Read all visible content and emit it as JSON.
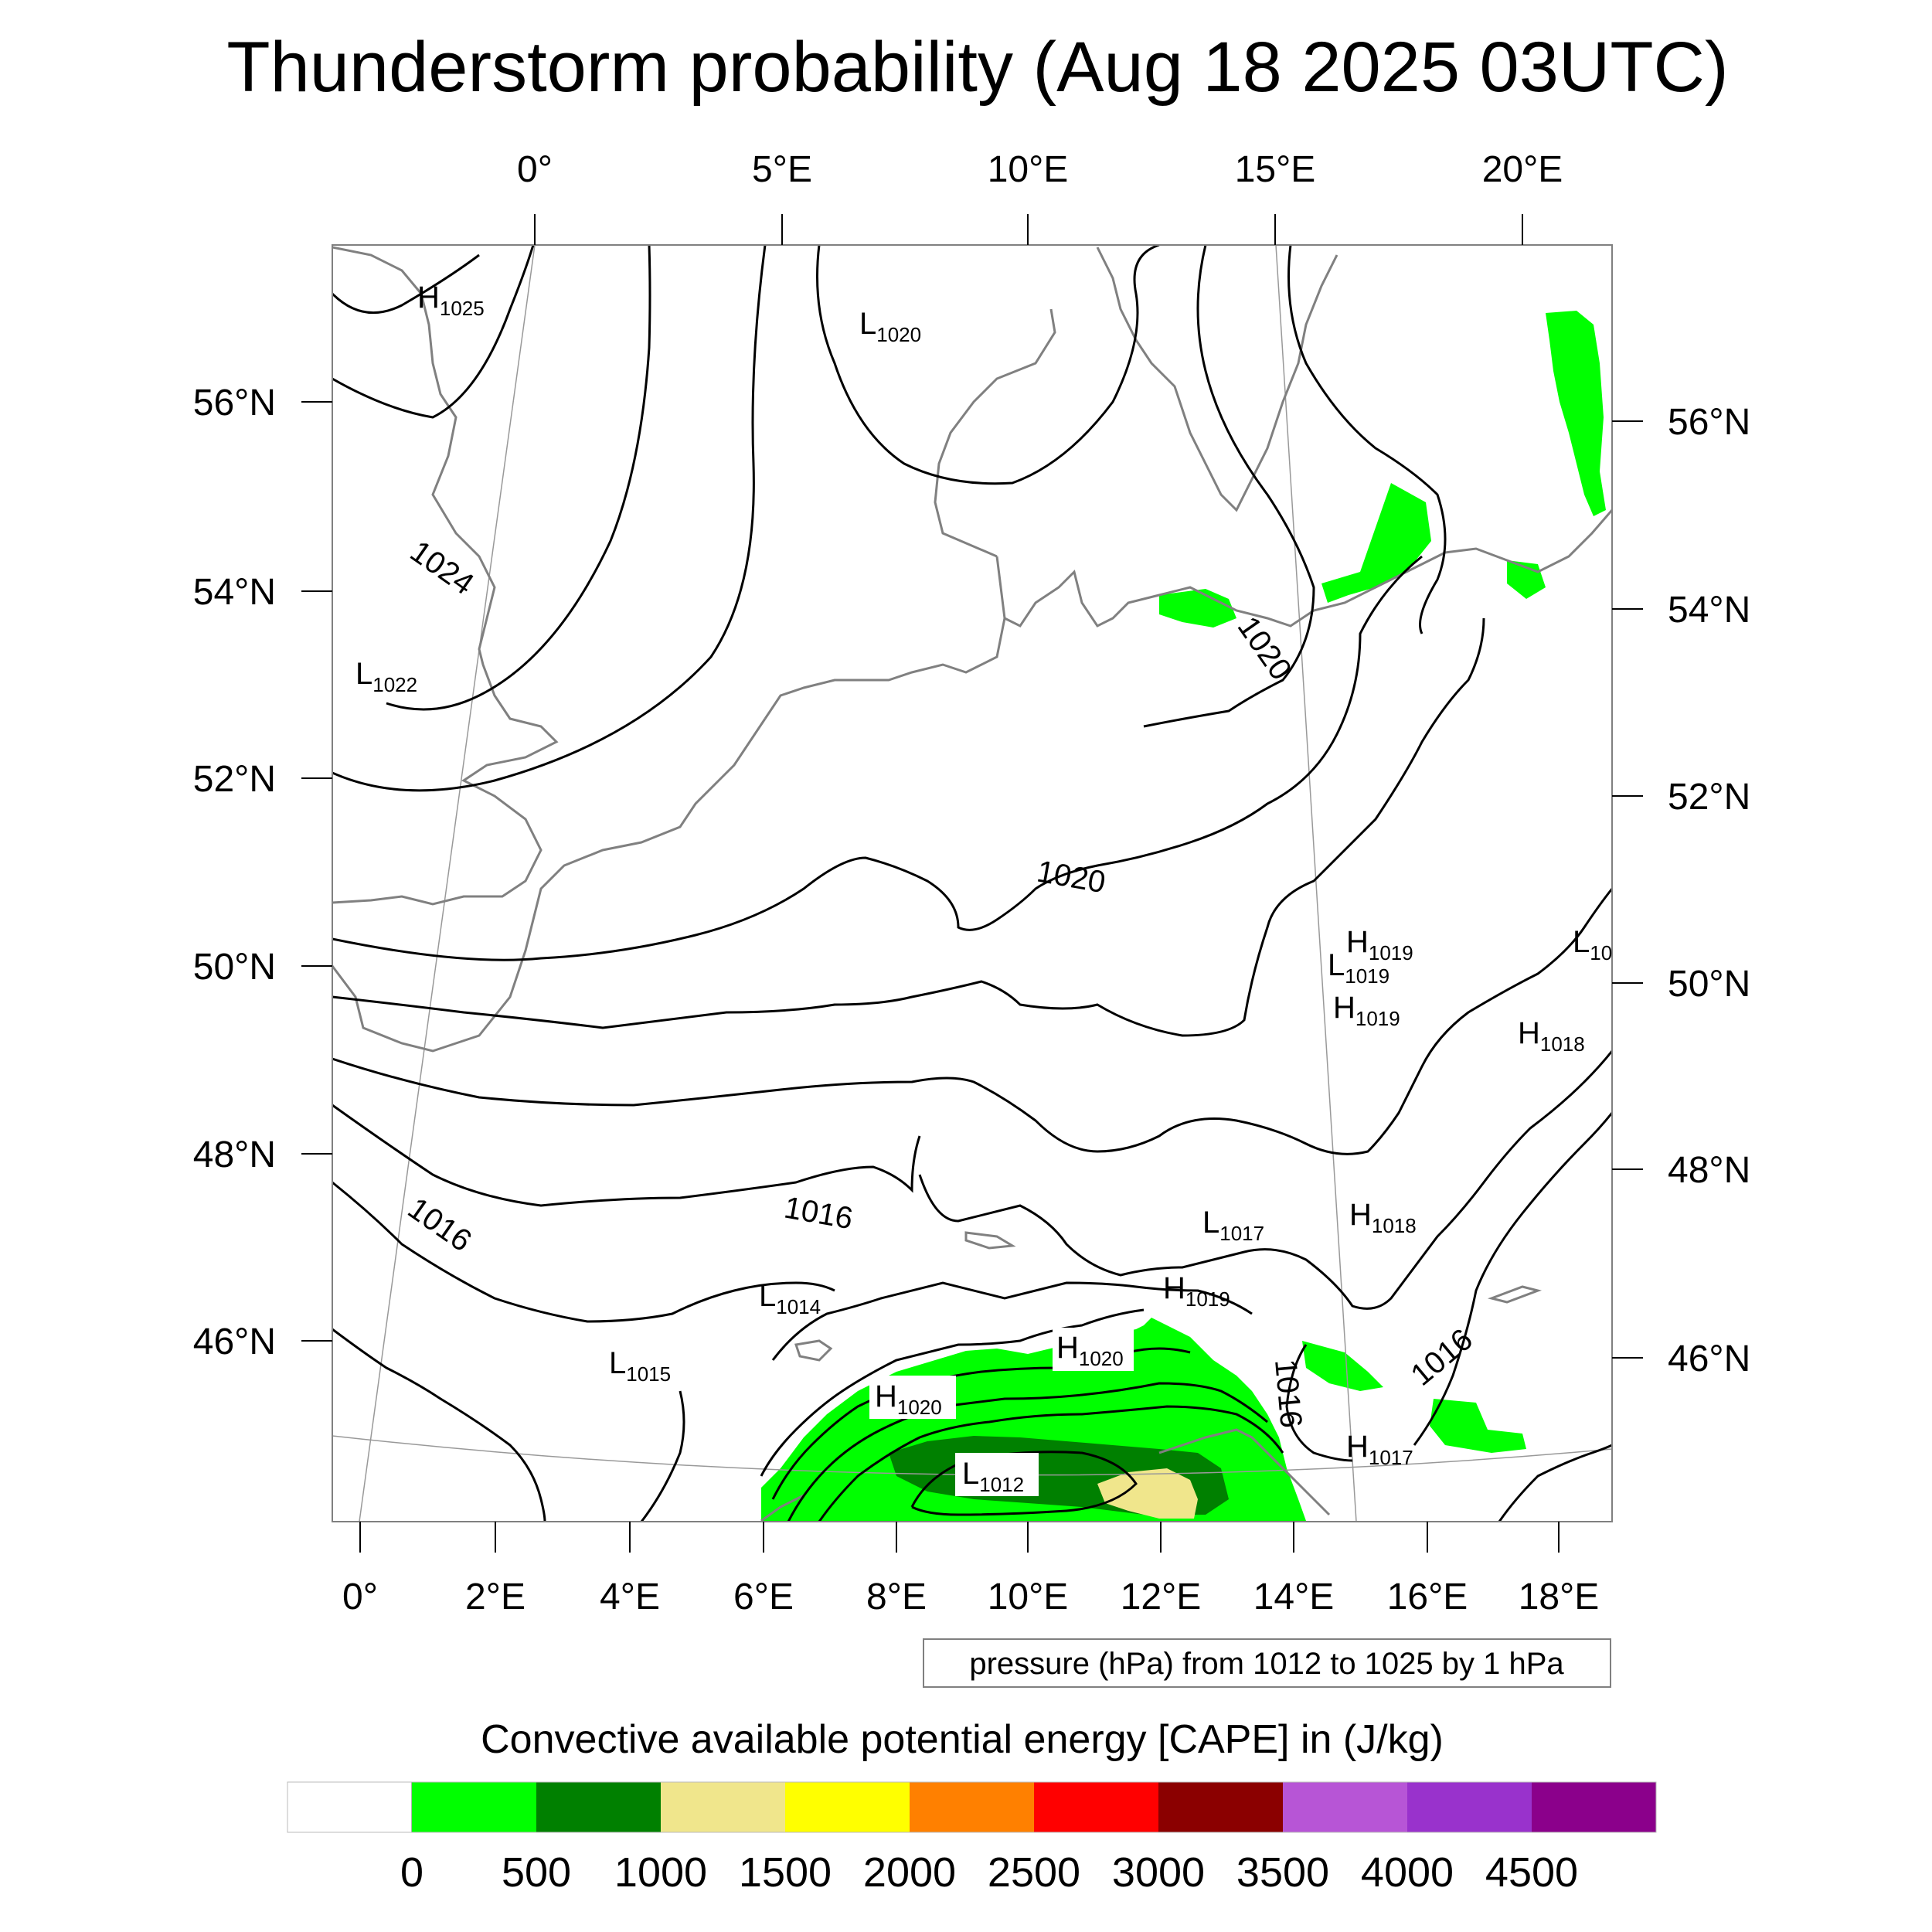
{
  "title": "Thunderstorm probability (Aug 18 2025 03UTC)",
  "axes": {
    "top_lon": [
      "0°",
      "5°E",
      "10°E",
      "15°E",
      "20°E"
    ],
    "bottom_lon": [
      "0°",
      "2°E",
      "4°E",
      "6°E",
      "8°E",
      "10°E",
      "12°E",
      "14°E",
      "16°E",
      "18°E"
    ],
    "left_lat": [
      "56°N",
      "54°N",
      "52°N",
      "50°N",
      "48°N",
      "46°N"
    ],
    "right_lat": [
      "56°N",
      "54°N",
      "52°N",
      "50°N",
      "48°N",
      "46°N"
    ]
  },
  "pressure_note": "pressure (hPa) from 1012 to 1025 by 1 hPa",
  "colorbar": {
    "title": "Convective available potential energy [CAPE] in (J/kg)",
    "labels": [
      "0",
      "500",
      "1000",
      "1500",
      "2000",
      "2500",
      "3000",
      "3500",
      "4000",
      "4500"
    ],
    "colors": [
      "#ffffff",
      "#00ff00",
      "#008000",
      "#f0e68c",
      "#ffff00",
      "#ff8000",
      "#ff0000",
      "#8b0000",
      "#b755d6",
      "#9932cc",
      "#8b008b"
    ]
  },
  "pressure_centers": [
    {
      "type": "H",
      "value": "1025"
    },
    {
      "type": "L",
      "value": "1020"
    },
    {
      "type": "L",
      "value": "1022"
    },
    {
      "type": "H",
      "value": "1019"
    },
    {
      "type": "L",
      "value": "1019"
    },
    {
      "type": "H",
      "value": "1019"
    },
    {
      "type": "L",
      "value": "10"
    },
    {
      "type": "H",
      "value": "1018"
    },
    {
      "type": "L",
      "value": "1017"
    },
    {
      "type": "H",
      "value": "1018"
    },
    {
      "type": "H",
      "value": "1019"
    },
    {
      "type": "L",
      "value": "1014"
    },
    {
      "type": "H",
      "value": "1020"
    },
    {
      "type": "L",
      "value": "1015"
    },
    {
      "type": "H",
      "value": "1020"
    },
    {
      "type": "L",
      "value": "1012"
    },
    {
      "type": "H",
      "value": "1017"
    }
  ],
  "isobar_labels": [
    "1024",
    "1020",
    "1020",
    "1016",
    "1016",
    "1016",
    "1016"
  ]
}
